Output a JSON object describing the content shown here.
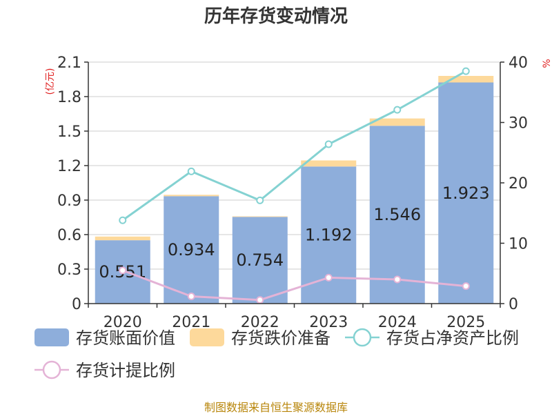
{
  "title": "历年存货变动情况",
  "footer": "制图数据来自恒生聚源数据库",
  "colors": {
    "book_value": "#8eaedb",
    "impairment": "#fdd99b",
    "net_asset_ratio": "#84d2d2",
    "provision_ratio": "#e4b3d6",
    "axis": "#333333",
    "grid": "#cccccc",
    "ylabel": "#e02020"
  },
  "chart_data": {
    "type": "bar",
    "title": "历年存货变动情况",
    "categories": [
      "2020",
      "2021",
      "2022",
      "2023",
      "2024",
      "2025"
    ],
    "ylabel_left": "(亿元)",
    "ylabel_right": "%",
    "ylim_left": [
      0,
      2.1
    ],
    "yticks_left": [
      "0",
      "0.3",
      "0.6",
      "0.9",
      "1.2",
      "1.5",
      "1.8",
      "2.1"
    ],
    "ylim_right": [
      0,
      40
    ],
    "yticks_right": [
      "0",
      "10",
      "20",
      "30",
      "40"
    ],
    "grid": true,
    "legend_position": "bottom",
    "series": [
      {
        "name": "存货账面价值",
        "type": "bar",
        "axis": "left",
        "stack": "inv",
        "values": [
          0.551,
          0.934,
          0.754,
          1.192,
          1.546,
          1.923
        ],
        "labels": [
          "0.551",
          "0.934",
          "0.754",
          "1.192",
          "1.546",
          "1.923"
        ]
      },
      {
        "name": "存货跌价准备",
        "type": "bar",
        "axis": "left",
        "stack": "inv",
        "values": [
          0.032,
          0.012,
          0.005,
          0.053,
          0.064,
          0.057
        ]
      },
      {
        "name": "存货占净资产比例",
        "type": "line",
        "axis": "right",
        "values": [
          13.8,
          21.9,
          17.1,
          26.4,
          32.1,
          38.5
        ]
      },
      {
        "name": "存货计提比例",
        "type": "line",
        "axis": "right",
        "values": [
          5.5,
          1.2,
          0.6,
          4.3,
          4.0,
          2.9
        ]
      }
    ]
  }
}
